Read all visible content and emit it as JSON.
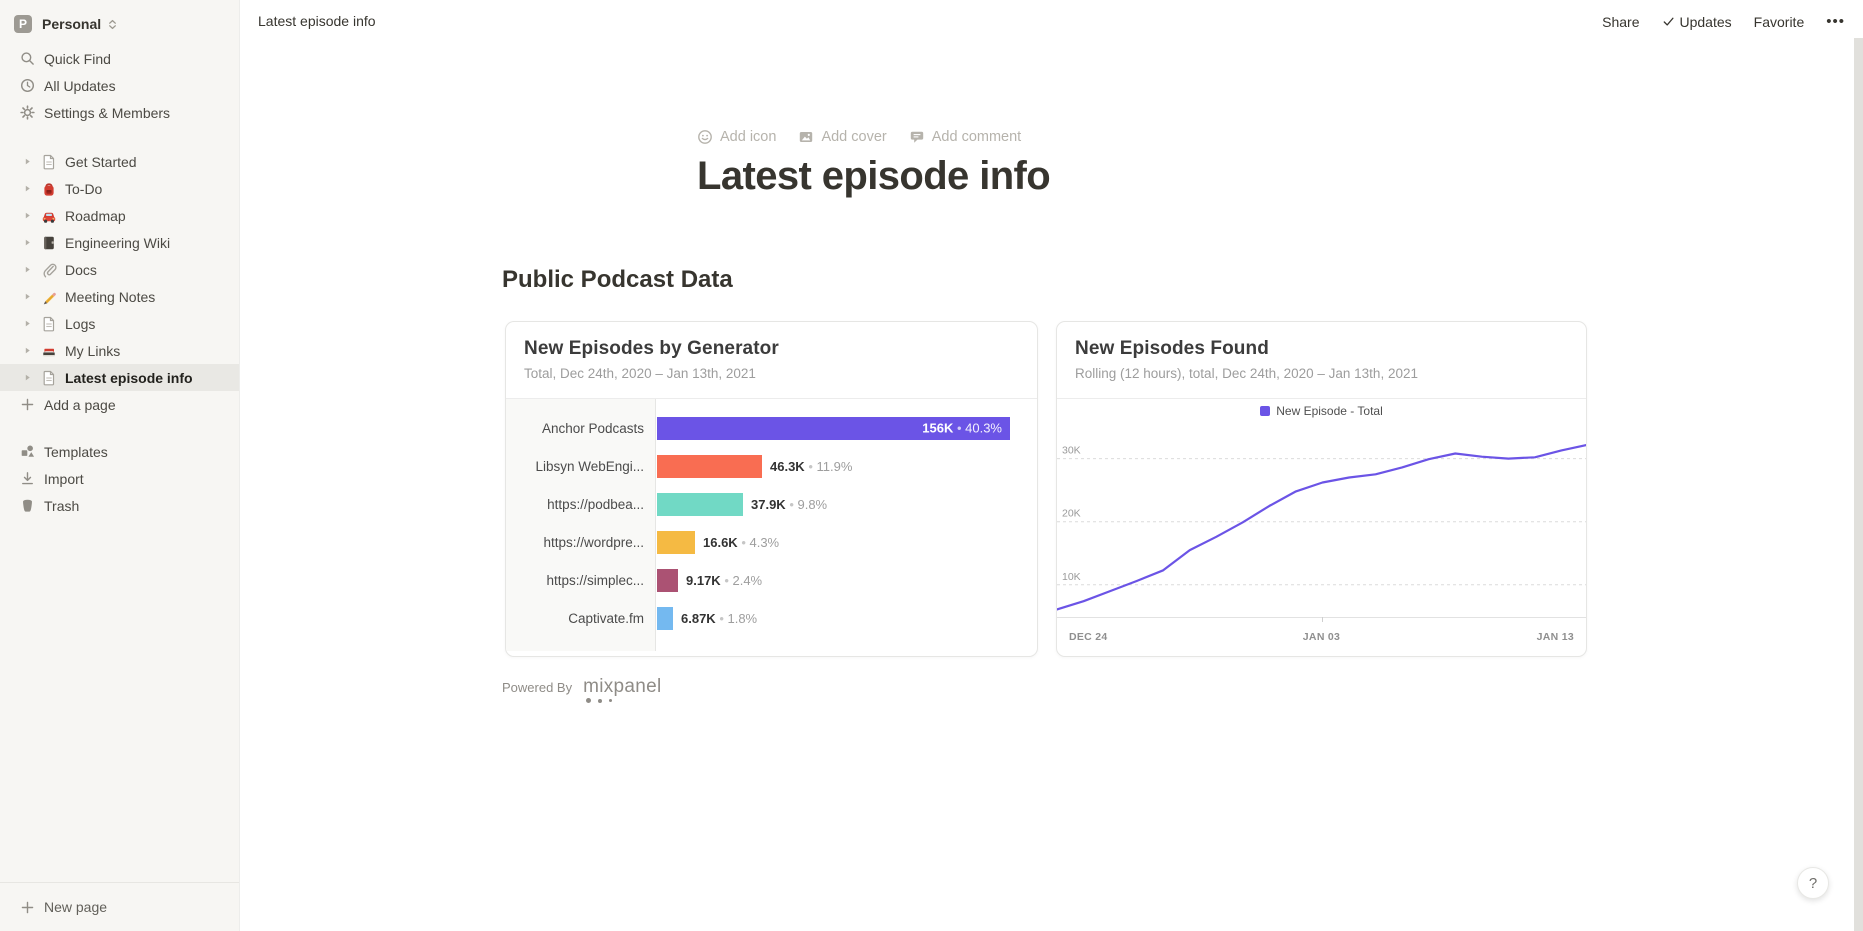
{
  "workspace": {
    "name": "Personal",
    "avatar_letter": "P"
  },
  "sidebar": {
    "top_items": [
      {
        "label": "Quick Find",
        "icon": "search-icon"
      },
      {
        "label": "All Updates",
        "icon": "clock-icon"
      },
      {
        "label": "Settings & Members",
        "icon": "gear-icon"
      }
    ],
    "pages": [
      {
        "label": "Get Started",
        "icon": "page-icon",
        "selected": false
      },
      {
        "label": "To-Do",
        "icon": "backpack-icon",
        "selected": false
      },
      {
        "label": "Roadmap",
        "icon": "car-icon",
        "selected": false
      },
      {
        "label": "Engineering Wiki",
        "icon": "notebook-icon",
        "selected": false
      },
      {
        "label": "Docs",
        "icon": "paperclip-icon",
        "selected": false
      },
      {
        "label": "Meeting Notes",
        "icon": "pencil-icon",
        "selected": false
      },
      {
        "label": "Logs",
        "icon": "page-icon",
        "selected": false
      },
      {
        "label": "My Links",
        "icon": "books-icon",
        "selected": false
      },
      {
        "label": "Latest episode info",
        "icon": "page-icon",
        "selected": true
      }
    ],
    "add_page_label": "Add a page",
    "bottom_items": [
      {
        "label": "Templates",
        "icon": "templates-icon"
      },
      {
        "label": "Import",
        "icon": "import-icon"
      },
      {
        "label": "Trash",
        "icon": "trash-icon"
      }
    ],
    "new_page_label": "New page"
  },
  "topbar": {
    "breadcrumb": "Latest episode info",
    "share_label": "Share",
    "updates_label": "Updates",
    "favorite_label": "Favorite",
    "more_label": "•••"
  },
  "page": {
    "add_icon_label": "Add icon",
    "add_cover_label": "Add cover",
    "add_comment_label": "Add comment",
    "title": "Latest episode info",
    "section_heading": "Public Podcast Data",
    "powered_by_label": "Powered By",
    "mixpanel_wordmark": "mixpanel",
    "help_label": "?"
  },
  "chart_data": [
    {
      "type": "bar",
      "orientation": "horizontal",
      "title": "New Episodes by Generator",
      "subtitle": "Total, Dec 24th, 2020 – Jan 13th, 2021",
      "categories": [
        "Anchor Podcasts",
        "Libsyn WebEngi...",
        "https://podbea...",
        "https://wordpre...",
        "https://simplec...",
        "Captivate.fm"
      ],
      "values": [
        156000,
        46300,
        37900,
        16600,
        9170,
        6870
      ],
      "value_labels": [
        "156K",
        "46.3K",
        "37.9K",
        "16.6K",
        "9.17K",
        "6.87K"
      ],
      "percent_labels": [
        "40.3%",
        "11.9%",
        "9.8%",
        "4.3%",
        "2.4%",
        "1.8%"
      ],
      "bar_colors": [
        "#6b54e6",
        "#f96d52",
        "#71d9c5",
        "#f5ba43",
        "#ab5273",
        "#74b9f0"
      ],
      "max_value": 156000,
      "grid": false
    },
    {
      "type": "line",
      "title": "New Episodes Found",
      "subtitle": "Rolling (12 hours), total, Dec 24th, 2020 – Jan 13th, 2021",
      "legend": [
        {
          "label": "New Episode - Total",
          "color": "#6b54e6"
        }
      ],
      "legend_position": "top-center",
      "line_color": "#6b54e6",
      "x": [
        "Dec 24",
        "Dec 25",
        "Dec 26",
        "Dec 27",
        "Dec 28",
        "Dec 29",
        "Dec 30",
        "Dec 31",
        "Jan 01",
        "Jan 02",
        "Jan 03",
        "Jan 04",
        "Jan 05",
        "Jan 06",
        "Jan 07",
        "Jan 08",
        "Jan 09",
        "Jan 10",
        "Jan 11",
        "Jan 12",
        "Jan 13"
      ],
      "values": [
        6100,
        7400,
        9000,
        10600,
        12300,
        15500,
        17600,
        19900,
        22500,
        24800,
        26200,
        27000,
        27500,
        28600,
        29900,
        30800,
        30300,
        30000,
        30200,
        31300,
        32200
      ],
      "y_ticks": [
        10000,
        20000,
        30000
      ],
      "y_tick_labels": [
        "10K",
        "20K",
        "30K"
      ],
      "x_axis_labels": [
        "DEC 24",
        "JAN 03",
        "JAN 13"
      ],
      "ylim": [
        4900,
        35000
      ],
      "grid": "dashed-horizontal"
    }
  ]
}
